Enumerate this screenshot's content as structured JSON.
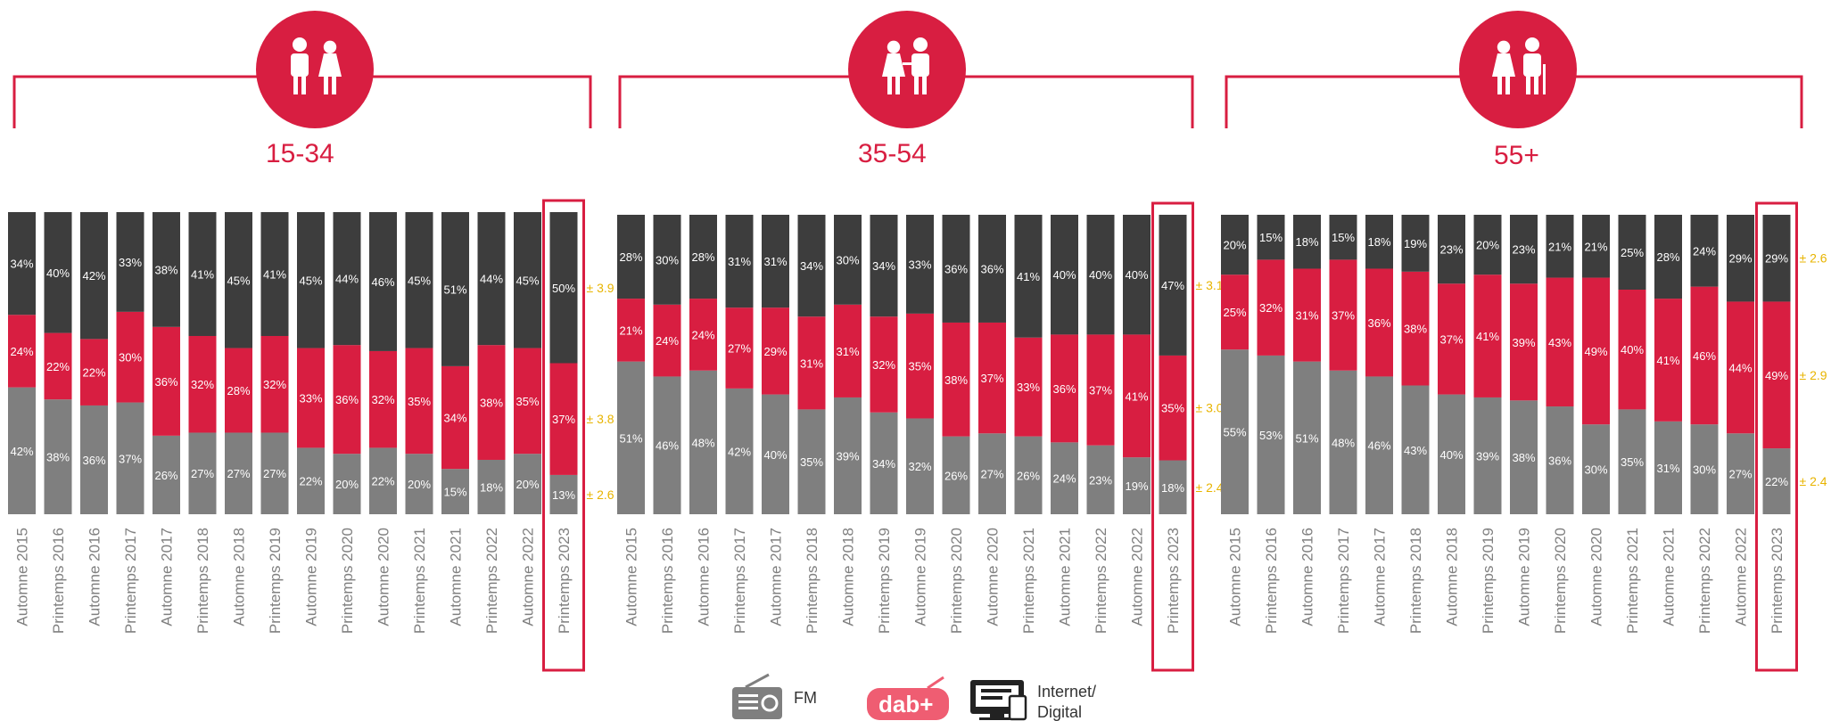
{
  "colors": {
    "fm": "#7f7f7f",
    "dab": "#d81e41",
    "internet": "#3d3d3d",
    "accent": "#d81e41",
    "moe": "#e8b400"
  },
  "legend": {
    "items": [
      {
        "key": "fm",
        "label": "FM",
        "icon": "radio-icon"
      },
      {
        "key": "dab",
        "label": "dab+",
        "icon": "dab-logo-icon"
      },
      {
        "key": "internet",
        "label_line1": "Internet/",
        "label_line2": "Digital",
        "icon": "computer-icon"
      }
    ]
  },
  "chart_data": {
    "type": "bar",
    "stacked": true,
    "percent": true,
    "categories": [
      "Automne 2015",
      "Printemps 2016",
      "Automne 2016",
      "Printemps 2017",
      "Automne 2017",
      "Printemps 2018",
      "Automne 2018",
      "Printemps 2019",
      "Automne 2019",
      "Printemps 2020",
      "Automne 2020",
      "Printemps 2021",
      "Automne 2021",
      "Printemps 2022",
      "Automne 2022",
      "Printemps 2023"
    ],
    "highlight_category": "Printemps 2023",
    "ylim": [
      0,
      100
    ],
    "groups": [
      {
        "title": "15-34",
        "icon": "young-couple-icon",
        "series": [
          {
            "name": "FM",
            "values": [
              42,
              38,
              36,
              37,
              26,
              27,
              27,
              27,
              22,
              20,
              22,
              20,
              15,
              18,
              20,
              13
            ]
          },
          {
            "name": "DAB+",
            "values": [
              24,
              22,
              22,
              30,
              36,
              32,
              28,
              32,
              33,
              36,
              32,
              35,
              34,
              38,
              35,
              37
            ]
          },
          {
            "name": "Internet/Digital",
            "values": [
              34,
              40,
              42,
              33,
              38,
              41,
              45,
              41,
              45,
              44,
              46,
              45,
              51,
              44,
              45,
              50
            ]
          }
        ],
        "margins": [
          "± 2.6",
          "± 3.8",
          "± 3.9"
        ]
      },
      {
        "title": "35-54",
        "icon": "adult-couple-icon",
        "series": [
          {
            "name": "FM",
            "values": [
              51,
              46,
              48,
              42,
              40,
              35,
              39,
              34,
              32,
              26,
              27,
              26,
              24,
              23,
              19,
              18
            ]
          },
          {
            "name": "DAB+",
            "values": [
              21,
              24,
              24,
              27,
              29,
              31,
              31,
              32,
              35,
              38,
              37,
              33,
              36,
              37,
              41,
              35
            ]
          },
          {
            "name": "Internet/Digital",
            "values": [
              28,
              30,
              28,
              31,
              31,
              34,
              30,
              34,
              33,
              36,
              36,
              41,
              40,
              40,
              40,
              47
            ]
          }
        ],
        "margins": [
          "± 2.4",
          "± 3.0",
          "± 3.1"
        ]
      },
      {
        "title": "55+",
        "icon": "senior-couple-icon",
        "series": [
          {
            "name": "FM",
            "values": [
              55,
              53,
              51,
              48,
              46,
              43,
              40,
              39,
              38,
              36,
              30,
              35,
              31,
              30,
              27,
              22
            ]
          },
          {
            "name": "DAB+",
            "values": [
              25,
              32,
              31,
              37,
              36,
              38,
              37,
              41,
              39,
              43,
              49,
              40,
              41,
              46,
              44,
              49
            ]
          },
          {
            "name": "Internet/Digital",
            "values": [
              20,
              15,
              18,
              15,
              18,
              19,
              23,
              20,
              23,
              21,
              21,
              25,
              28,
              24,
              29,
              29
            ]
          }
        ],
        "margins": [
          "± 2.4",
          "± 2.9",
          "± 2.6"
        ]
      }
    ]
  }
}
